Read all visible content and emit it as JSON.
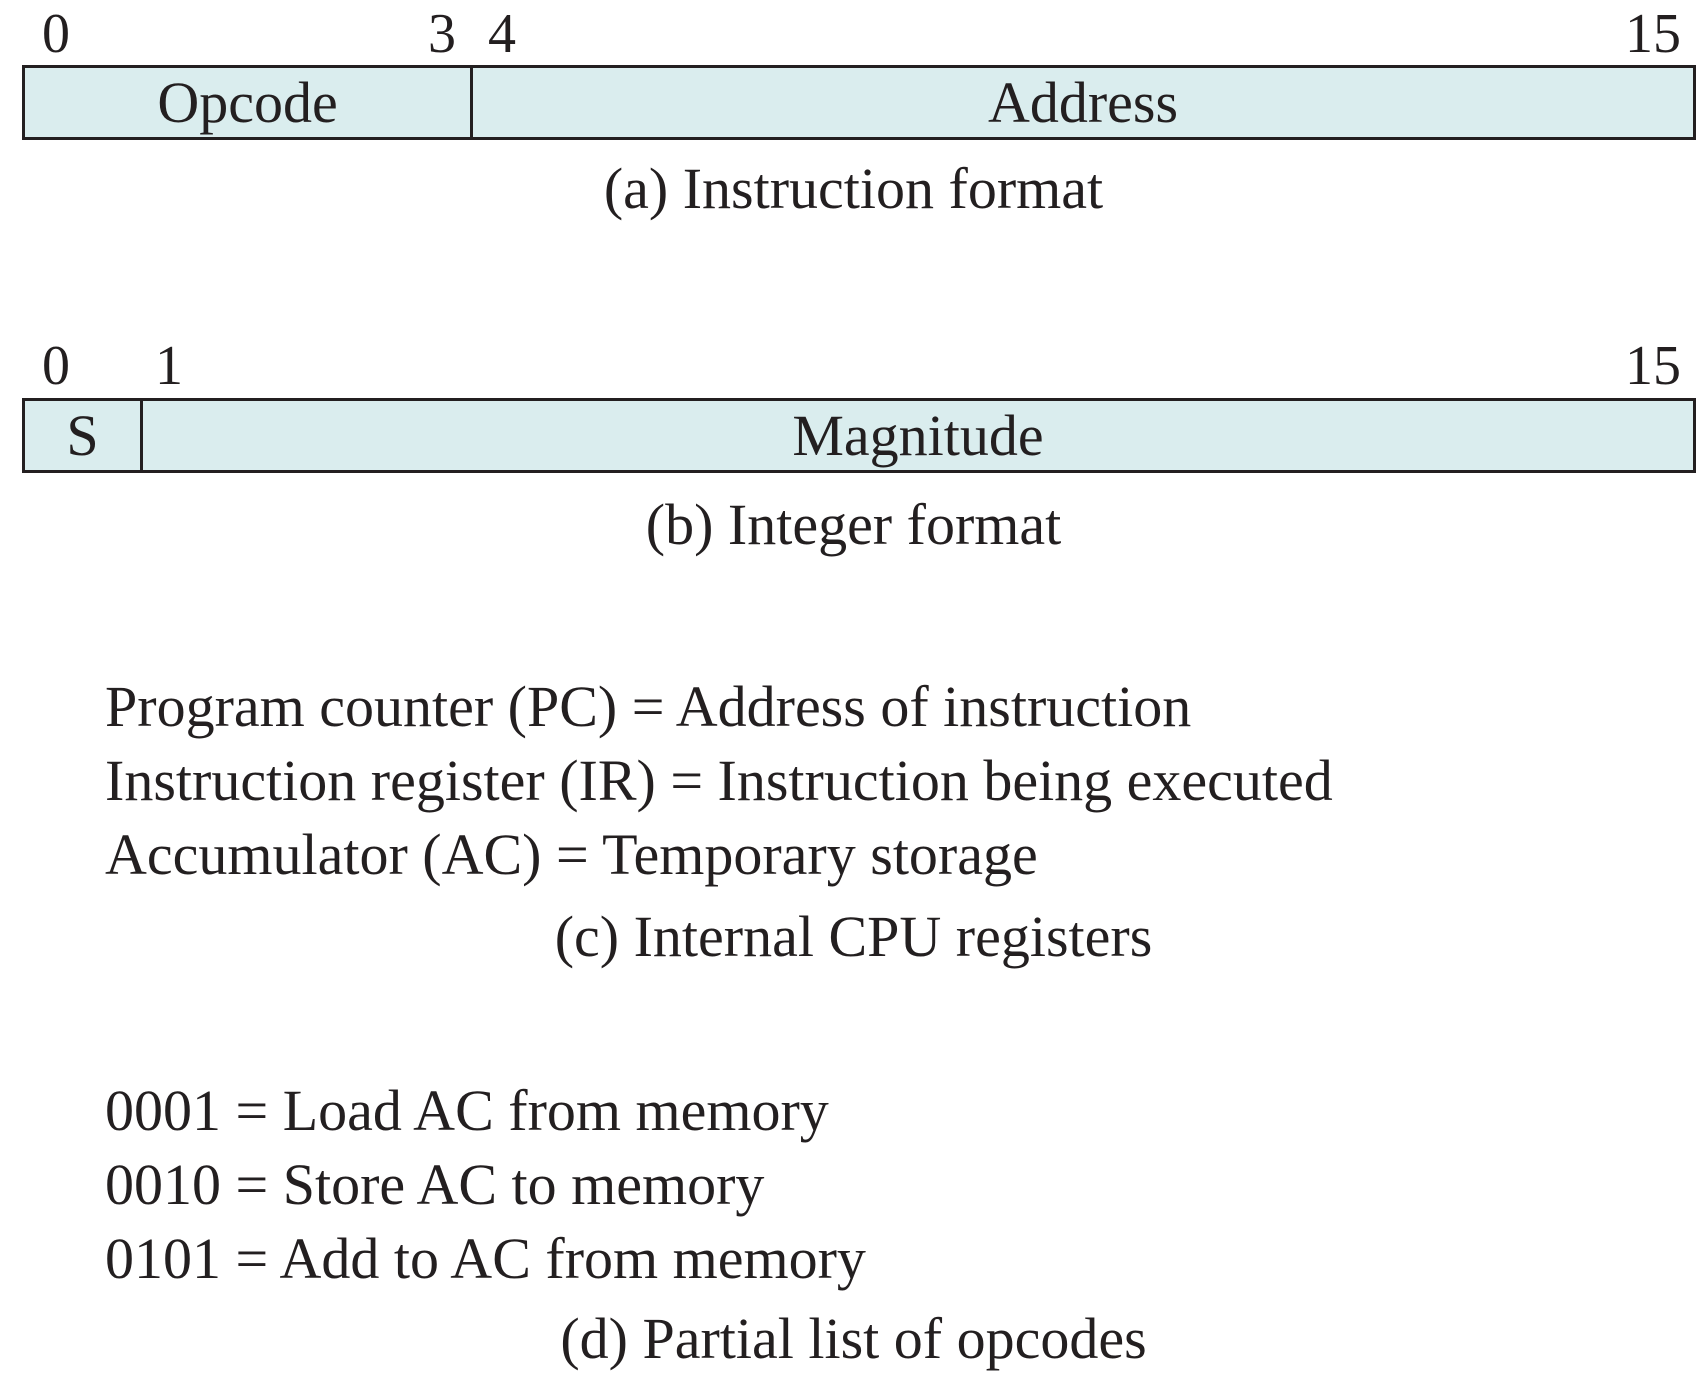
{
  "instruction_format": {
    "bit_labels": [
      "0",
      "3",
      "4",
      "15"
    ],
    "fields": [
      "Opcode",
      "Address"
    ],
    "caption": "(a) Instruction format"
  },
  "integer_format": {
    "bit_labels": [
      "0",
      "1",
      "15"
    ],
    "fields": [
      "S",
      "Magnitude"
    ],
    "caption": "(b) Integer format"
  },
  "registers": {
    "lines": [
      "Program counter (PC) = Address of instruction",
      "Instruction register (IR) = Instruction being executed",
      "Accumulator (AC) = Temporary storage"
    ],
    "caption": "(c) Internal CPU registers"
  },
  "opcodes": {
    "lines": [
      "0001 = Load AC from memory",
      "0010 = Store AC to memory",
      "0101 = Add to AC from memory"
    ],
    "caption": "(d) Partial list of opcodes"
  }
}
